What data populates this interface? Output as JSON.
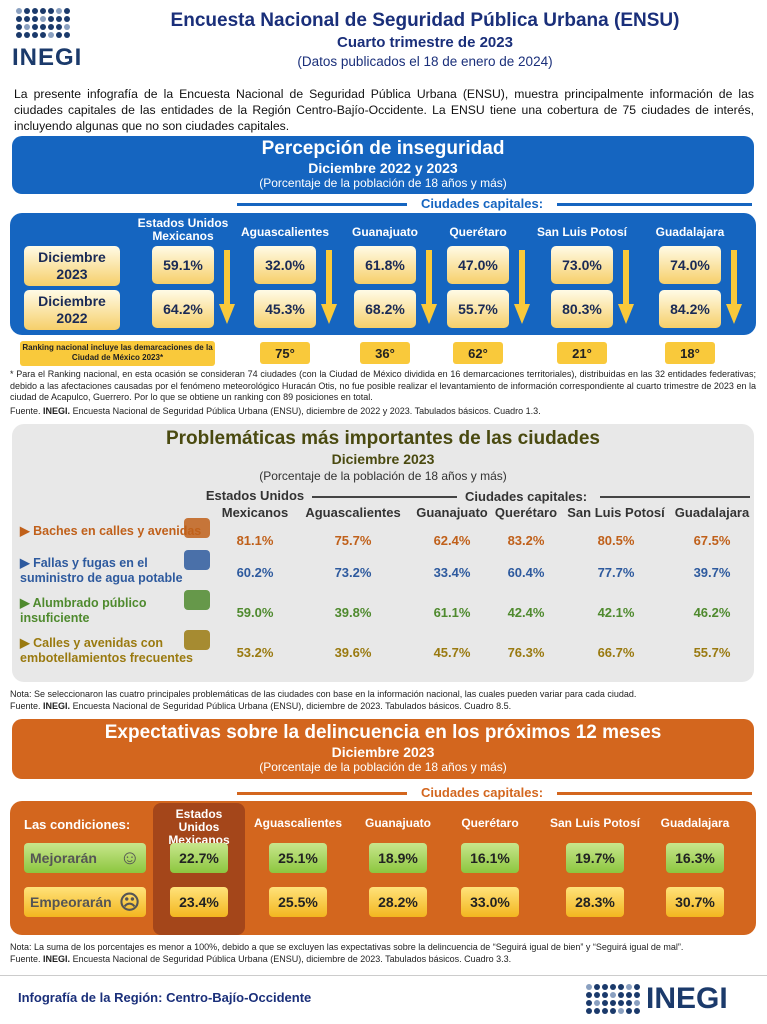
{
  "header": {
    "logo": "INEGI",
    "title": "Encuesta Nacional de Seguridad Pública Urbana (ENSU)",
    "subtitle": "Cuarto trimestre de 2023",
    "published": "(Datos publicados el 18 de enero de 2024)"
  },
  "intro": "La presente infografía de la Encuesta Nacional de Seguridad Pública Urbana (ENSU), muestra principalmente información de las ciudades capitales de las entidades de la Región Centro-Bajío-Occidente. La ENSU tiene una cobertura de 75 ciudades de interés, incluyendo algunas que no son ciudades capitales.",
  "columns": [
    "Estados Unidos Mexicanos",
    "Aguascalientes",
    "Guanajuato",
    "Querétaro",
    "San Luis Potosí",
    "Guadalajara"
  ],
  "capitals_label": "Ciudades capitales:",
  "s1": {
    "title": "Percepción de inseguridad",
    "period": "Diciembre 2022 y 2023",
    "unit": "(Porcentaje de la población de 18 años y más)",
    "rows": [
      {
        "label": "Diciembre 2023",
        "values": [
          "59.1%",
          "32.0%",
          "61.8%",
          "47.0%",
          "73.0%",
          "74.0%"
        ]
      },
      {
        "label": "Diciembre 2022",
        "values": [
          "64.2%",
          "45.3%",
          "68.2%",
          "55.7%",
          "80.3%",
          "84.2%"
        ]
      }
    ],
    "ranking_label": "Ranking nacional incluye las demarcaciones de la Ciudad de México 2023*",
    "ranking": [
      "75°",
      "36°",
      "62°",
      "21°",
      "18°"
    ],
    "footnote": "* Para el Ranking nacional, en esta ocasión se consideran 74 ciudades (con la Ciudad de México dividida en 16 demarcaciones territoriales), distribuidas en las 32 entidades federativas; debido a las afectaciones causadas por el fenómeno meteorológico Huracán Otis, no fue posible realizar el levantamiento de información correspondiente al cuarto trimestre de 2023 en la ciudad de Acapulco, Guerrero. Por lo que se obtiene un ranking con 89 posiciones en total.",
    "source_label": "Fuente.",
    "source_org": "INEGI.",
    "source": "Encuesta Nacional de Seguridad Pública Urbana (ENSU), diciembre de 2022 y 2023. Tabulados básicos. Cuadro 1.3."
  },
  "s2": {
    "title": "Problemáticas más importantes de las ciudades",
    "period": "Diciembre 2023",
    "unit": "(Porcentaje de la población de 18 años y más)",
    "col0a": "Estados Unidos",
    "col0b": "Mexicanos",
    "rows": [
      {
        "label": "Baches en calles y avenidas",
        "color": "#c0601a",
        "values": [
          "81.1%",
          "75.7%",
          "62.4%",
          "83.2%",
          "80.5%",
          "67.5%"
        ]
      },
      {
        "label": "Fallas y fugas en el suministro de agua potable",
        "color": "#2e5a9e",
        "values": [
          "60.2%",
          "73.2%",
          "33.4%",
          "60.4%",
          "77.7%",
          "39.7%"
        ]
      },
      {
        "label": "Alumbrado público insuficiente",
        "color": "#4f8a2e",
        "values": [
          "59.0%",
          "39.8%",
          "61.1%",
          "42.4%",
          "42.1%",
          "46.2%"
        ]
      },
      {
        "label": "Calles y avenidas con embotellamientos frecuentes",
        "color": "#9a7a10",
        "values": [
          "53.2%",
          "39.6%",
          "45.7%",
          "76.3%",
          "66.7%",
          "55.7%"
        ]
      }
    ],
    "note": "Nota: Se seleccionaron las cuatro principales problemáticas de las ciudades con base en la información nacional, las cuales pueden variar para cada ciudad.",
    "source_label": "Fuente.",
    "source_org": "INEGI.",
    "source": "Encuesta Nacional de Seguridad Pública Urbana (ENSU), diciembre de 2023. Tabulados básicos. Cuadro 8.5."
  },
  "s3": {
    "title": "Expectativas sobre la delincuencia en los próximos 12 meses",
    "period": "Diciembre 2023",
    "unit": "(Porcentaje de la población de 18 años y más)",
    "conditions": "Las condiciones:",
    "rows": [
      {
        "label": "Mejorarán",
        "icon": "smile",
        "values": [
          "22.7%",
          "25.1%",
          "18.9%",
          "16.1%",
          "19.7%",
          "16.3%"
        ]
      },
      {
        "label": "Empeorarán",
        "icon": "frown",
        "values": [
          "23.4%",
          "25.5%",
          "28.2%",
          "33.0%",
          "28.3%",
          "30.7%"
        ]
      }
    ],
    "note": "Nota: La suma de los porcentajes es menor a 100%, debido a que se excluyen las expectativas sobre la delincuencia de “Seguirá igual de bien” y “Seguirá igual de mal”.",
    "source_label": "Fuente.",
    "source_org": "INEGI.",
    "source": "Encuesta Nacional de Seguridad Pública Urbana (ENSU), diciembre de 2023. Tabulados básicos. Cuadro 3.3."
  },
  "footer": {
    "label": "Infografía de la Región: Centro-Bajío-Occidente",
    "logo": "INEGI"
  },
  "colors": {
    "blue": "#1565c0",
    "orange": "#d3661e",
    "gray": "#e8e8e8"
  }
}
